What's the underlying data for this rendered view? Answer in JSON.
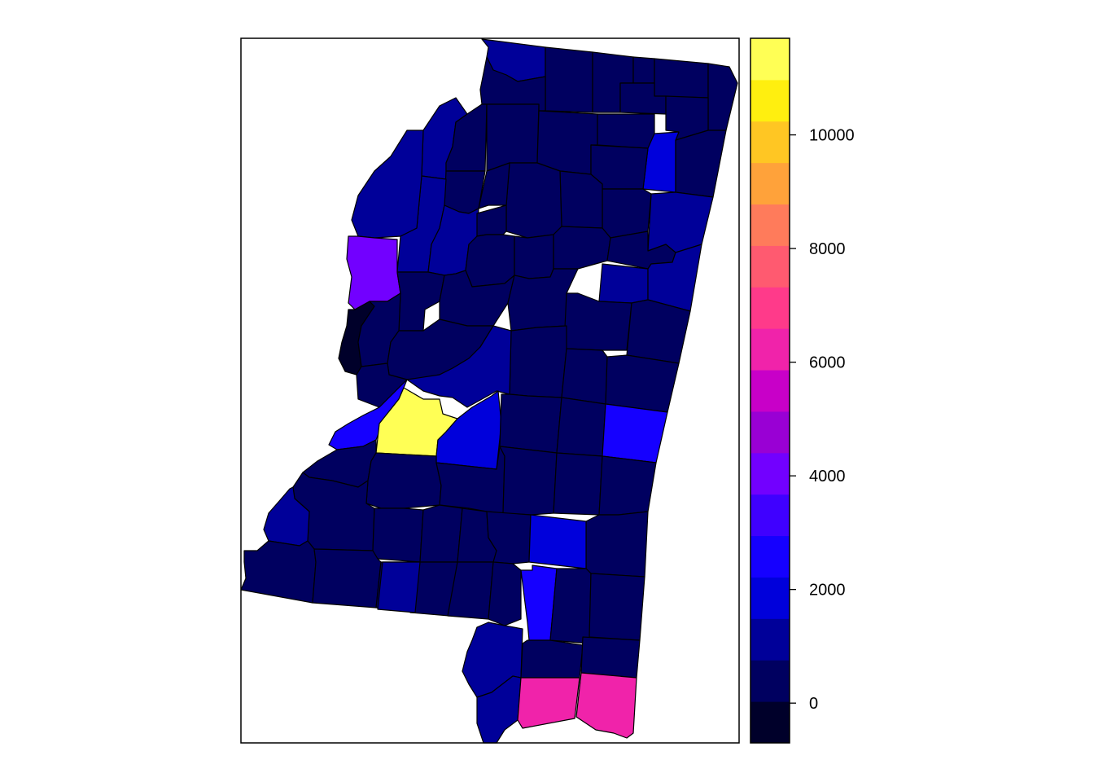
{
  "palette": [
    "#00002A",
    "#000060",
    "#000099",
    "#0000DB",
    "#1500FF",
    "#3F00FF",
    "#7200FF",
    "#9900D4",
    "#C800C8",
    "#F023AA",
    "#FF3A8A",
    "#FF5A70",
    "#FF7B5B",
    "#FFA23A",
    "#FFC623",
    "#FFEF0F",
    "#FFFF55"
  ],
  "chart_data": {
    "type": "choropleth",
    "region": "counties",
    "color_scale": {
      "min": -700,
      "max": 11700,
      "ticks": [
        {
          "value": 0,
          "label": "0"
        },
        {
          "value": 2000,
          "label": "2000"
        },
        {
          "value": 4000,
          "label": "4000"
        },
        {
          "value": 6000,
          "label": "6000"
        },
        {
          "value": 8000,
          "label": "8000"
        },
        {
          "value": 10000,
          "label": "10000"
        }
      ]
    },
    "regions": [
      {
        "id": "r1",
        "value": 800
      },
      {
        "id": "r2",
        "value": 300
      },
      {
        "id": "r3",
        "value": 300
      },
      {
        "id": "r4",
        "value": 300
      },
      {
        "id": "r5",
        "value": 300
      },
      {
        "id": "r6",
        "value": 300
      },
      {
        "id": "r7",
        "value": 300
      },
      {
        "id": "r8",
        "value": 1000
      },
      {
        "id": "r9",
        "value": 300
      },
      {
        "id": "r10",
        "value": 300
      },
      {
        "id": "r11",
        "value": 300
      },
      {
        "id": "r12",
        "value": 300
      },
      {
        "id": "r13",
        "value": 300
      },
      {
        "id": "r14",
        "value": 300
      },
      {
        "id": "r15",
        "value": 1900
      },
      {
        "id": "r16",
        "value": 300
      },
      {
        "id": "r17",
        "value": 900
      },
      {
        "id": "r18",
        "value": 300
      },
      {
        "id": "r19",
        "value": 300
      },
      {
        "id": "r20",
        "value": 300
      },
      {
        "id": "r21",
        "value": 300
      },
      {
        "id": "r22",
        "value": 300
      },
      {
        "id": "r23",
        "value": 300
      },
      {
        "id": "r24",
        "value": 1000
      },
      {
        "id": "r25",
        "value": 800
      },
      {
        "id": "r26",
        "value": 1000
      },
      {
        "id": "r27",
        "value": 300
      },
      {
        "id": "r28",
        "value": 300
      },
      {
        "id": "r29",
        "value": 300
      },
      {
        "id": "r30",
        "value": 300
      },
      {
        "id": "r31",
        "value": 300
      },
      {
        "id": "r32",
        "value": 1000
      },
      {
        "id": "r33",
        "value": 900
      },
      {
        "id": "r34",
        "value": 3700
      },
      {
        "id": "r35",
        "value": 300
      },
      {
        "id": "r36",
        "value": 300
      },
      {
        "id": "r37",
        "value": 300
      },
      {
        "id": "r38",
        "value": -300
      },
      {
        "id": "r39",
        "value": 300
      },
      {
        "id": "r40",
        "value": 300
      },
      {
        "id": "r41",
        "value": 300
      },
      {
        "id": "r42",
        "value": 300
      },
      {
        "id": "r43",
        "value": 300
      },
      {
        "id": "r44",
        "value": 1100
      },
      {
        "id": "r45",
        "value": 300
      },
      {
        "id": "r46",
        "value": 300
      },
      {
        "id": "r47",
        "value": 300
      },
      {
        "id": "r48",
        "value": 2300
      },
      {
        "id": "r49",
        "value": 11500
      },
      {
        "id": "r50",
        "value": 1800
      },
      {
        "id": "r51",
        "value": 300
      },
      {
        "id": "r52",
        "value": 300
      },
      {
        "id": "r53",
        "value": 300
      },
      {
        "id": "r54",
        "value": 2500
      },
      {
        "id": "r55",
        "value": 300
      },
      {
        "id": "r56",
        "value": 300
      },
      {
        "id": "r57",
        "value": 300
      },
      {
        "id": "r58",
        "value": 300
      },
      {
        "id": "r59",
        "value": 300
      },
      {
        "id": "r60",
        "value": 300
      },
      {
        "id": "r61",
        "value": 300
      },
      {
        "id": "r62",
        "value": 1100
      },
      {
        "id": "r63",
        "value": 300
      },
      {
        "id": "r64",
        "value": 300
      },
      {
        "id": "r65",
        "value": 300
      },
      {
        "id": "r66",
        "value": 300
      },
      {
        "id": "r67",
        "value": 300
      },
      {
        "id": "r68",
        "value": 1900
      },
      {
        "id": "r69",
        "value": 300
      },
      {
        "id": "r70",
        "value": 300
      },
      {
        "id": "r71",
        "value": 300
      },
      {
        "id": "r72",
        "value": 1000
      },
      {
        "id": "r73",
        "value": 300
      },
      {
        "id": "r74",
        "value": 300
      },
      {
        "id": "r75",
        "value": 2700
      },
      {
        "id": "r76",
        "value": 300
      },
      {
        "id": "r77",
        "value": 300
      },
      {
        "id": "r78",
        "value": 1000
      },
      {
        "id": "r79",
        "value": 300
      },
      {
        "id": "r80",
        "value": 300
      },
      {
        "id": "r81",
        "value": 1100
      },
      {
        "id": "r82",
        "value": 6000
      },
      {
        "id": "r83",
        "value": 6000
      }
    ]
  }
}
